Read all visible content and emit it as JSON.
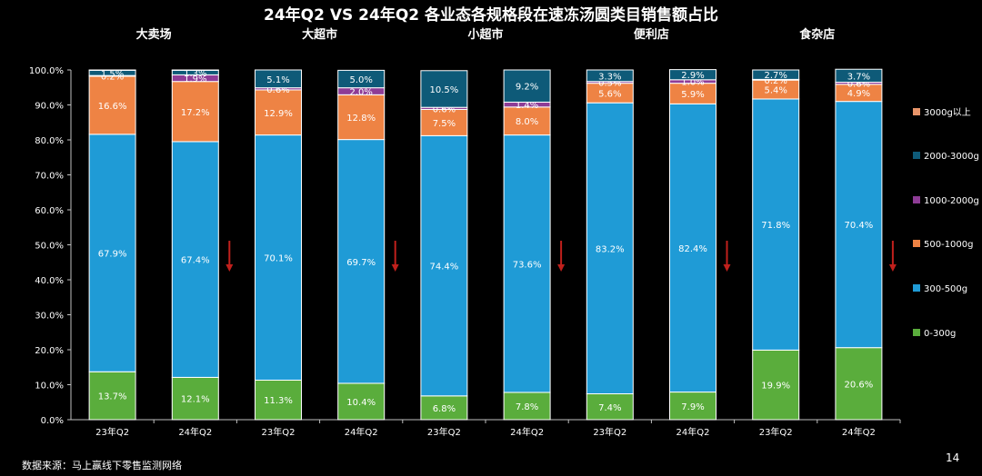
{
  "title": "24年Q2 VS 24年Q2 各业态各规格段在速冻汤圆类目销售额占比",
  "source_note": "数据来源：马上赢线下零售监测网络",
  "page_number": "14",
  "colors": {
    "0-300g": "#5aad3c",
    "300-500g": "#1f9bd6",
    "500-1000g": "#ee8344",
    "1000-2000g": "#8e3c96",
    "2000-3000g": "#0e5a78",
    "3000g以上": "#e8956a",
    "arrow": "#c0201c",
    "background": "#000000"
  },
  "chart_data": {
    "type": "bar",
    "stacked": true,
    "title": "24年Q2 VS 24年Q2 各业态各规格段在速冻汤圆类目销售额占比",
    "groups": [
      "大卖场",
      "大超市",
      "小超市",
      "便利店",
      "食杂店"
    ],
    "categories": [
      "23年Q2",
      "24年Q2",
      "23年Q2",
      "24年Q2",
      "23年Q2",
      "24年Q2",
      "23年Q2",
      "24年Q2",
      "23年Q2",
      "24年Q2"
    ],
    "yticks": [
      "0.0%",
      "10.0%",
      "20.0%",
      "30.0%",
      "40.0%",
      "50.0%",
      "60.0%",
      "70.0%",
      "80.0%",
      "90.0%",
      "100.0%"
    ],
    "ylim": [
      0,
      100
    ],
    "legend_position": "right",
    "legend": [
      "3000g以上",
      "2000-3000g",
      "1000-2000g",
      "500-1000g",
      "300-500g",
      "0-300g"
    ],
    "series": [
      {
        "name": "0-300g",
        "values": [
          13.7,
          12.1,
          11.3,
          10.4,
          6.8,
          7.8,
          7.4,
          7.9,
          19.9,
          20.6
        ],
        "labels": [
          "13.7%",
          "12.1%",
          "11.3%",
          "10.4%",
          "6.8%",
          "7.8%",
          "7.4%",
          "7.9%",
          "19.9%",
          "20.6%"
        ]
      },
      {
        "name": "300-500g",
        "values": [
          67.9,
          67.4,
          70.1,
          69.7,
          74.4,
          73.6,
          83.2,
          82.4,
          71.8,
          70.4
        ],
        "labels": [
          "67.9%",
          "67.4%",
          "70.1%",
          "69.7%",
          "74.4%",
          "73.6%",
          "83.2%",
          "82.4%",
          "71.8%",
          "70.4%"
        ]
      },
      {
        "name": "500-1000g",
        "values": [
          16.6,
          17.2,
          12.9,
          12.8,
          7.5,
          8.0,
          5.6,
          5.9,
          5.4,
          4.9
        ],
        "labels": [
          "16.6%",
          "17.2%",
          "12.9%",
          "12.8%",
          "7.5%",
          "8.0%",
          "5.6%",
          "5.9%",
          "5.4%",
          "4.9%"
        ]
      },
      {
        "name": "1000-2000g",
        "values": [
          0.2,
          1.9,
          0.6,
          2.0,
          0.6,
          1.4,
          0.5,
          1.0,
          0.2,
          0.6
        ],
        "labels": [
          "0.2%",
          "1.9%",
          "0.6%",
          "2.0%",
          "0.6%",
          "1.4%",
          "0.5%",
          "1.0%",
          "0.2%",
          "0.6%"
        ]
      },
      {
        "name": "2000-3000g",
        "values": [
          1.5,
          1.3,
          5.1,
          5.0,
          10.5,
          9.2,
          3.3,
          2.9,
          2.7,
          3.7
        ],
        "labels": [
          "1.5%",
          "1.3%",
          "5.1%",
          "5.0%",
          "10.5%",
          "9.2%",
          "3.3%",
          "2.9%",
          "2.7%",
          "3.7%"
        ]
      },
      {
        "name": "3000g以上",
        "values": [
          0.1,
          0.1,
          0,
          0,
          0,
          0,
          0,
          0,
          0,
          0
        ],
        "labels": [
          "",
          "",
          "",
          "",
          "",
          "",
          "",
          "",
          "",
          ""
        ]
      }
    ]
  }
}
